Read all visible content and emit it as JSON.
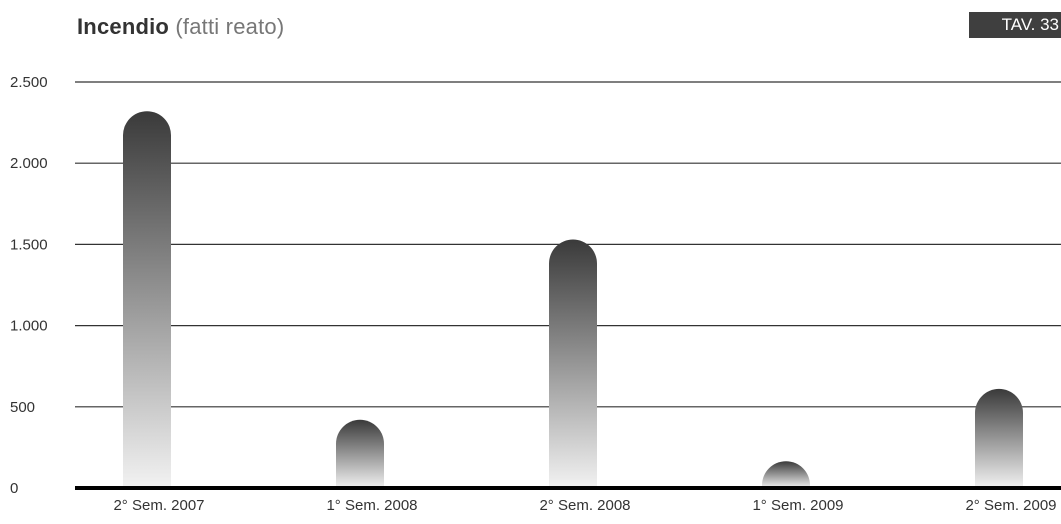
{
  "header": {
    "title_main": "Incendio",
    "title_sub": "(fatti reato)",
    "badge": "TAV. 33"
  },
  "colors": {
    "bar_top": "#3a3a3a",
    "bar_bottom": "#f2f2f2",
    "gridline": "#333333",
    "baseline": "#000000",
    "badge_bg": "#3f3f3f"
  },
  "chart_data": {
    "type": "bar",
    "title": "Incendio (fatti reato)",
    "xlabel": "",
    "ylabel": "",
    "categories": [
      "2° Sem. 2007",
      "1° Sem. 2008",
      "2° Sem. 2008",
      "1° Sem. 2009",
      "2° Sem. 2009"
    ],
    "values": [
      2320,
      420,
      1530,
      165,
      610
    ],
    "ylim": [
      0,
      2500
    ],
    "yticks": [
      0,
      500,
      1000,
      1500,
      2000,
      2500
    ],
    "ytick_labels": [
      "0",
      "500",
      "1.000",
      "1.500",
      "2.000",
      "2.500"
    ],
    "grid": true,
    "legend": "none"
  }
}
